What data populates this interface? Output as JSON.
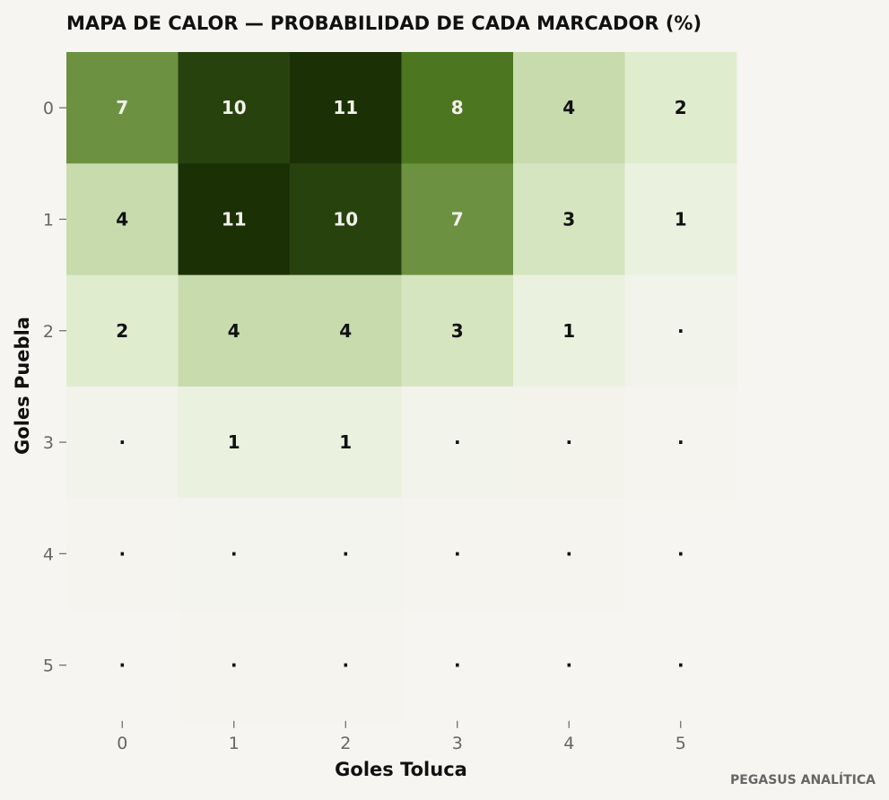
{
  "chart_data": {
    "type": "heatmap",
    "title": "MAPA DE CALOR — PROBABILIDAD DE CADA MARCADOR (%)",
    "xlabel": "Goles Toluca",
    "ylabel": "Goles Puebla",
    "x_categories": [
      "0",
      "1",
      "2",
      "3",
      "4",
      "5"
    ],
    "y_categories": [
      "0",
      "1",
      "2",
      "3",
      "4",
      "5"
    ],
    "values": [
      [
        7,
        10,
        11,
        8,
        4,
        2
      ],
      [
        4,
        11,
        10,
        7,
        3,
        1
      ],
      [
        2,
        4,
        4,
        3,
        1,
        0.4
      ],
      [
        0.4,
        1,
        1,
        0.4,
        0.3,
        0.1
      ],
      [
        0.1,
        0.2,
        0.2,
        0.1,
        0.1,
        0
      ],
      [
        0,
        0.1,
        0.1,
        0,
        0,
        0
      ]
    ],
    "labels": [
      [
        "7",
        "10",
        "11",
        "8",
        "4",
        "2"
      ],
      [
        "4",
        "11",
        "10",
        "7",
        "3",
        "1"
      ],
      [
        "2",
        "4",
        "4",
        "3",
        "1",
        "·"
      ],
      [
        "·",
        "1",
        "1",
        "·",
        "·",
        "·"
      ],
      [
        "·",
        "·",
        "·",
        "·",
        "·",
        "·"
      ],
      [
        "·",
        "·",
        "·",
        "·",
        "·",
        "·"
      ]
    ],
    "color_low": "#f6f5f1",
    "color_high": "#1c3006",
    "label_dark": "#111111",
    "label_light": "#f2f2ec"
  },
  "credit": "PEGASUS ANALÍTICA"
}
